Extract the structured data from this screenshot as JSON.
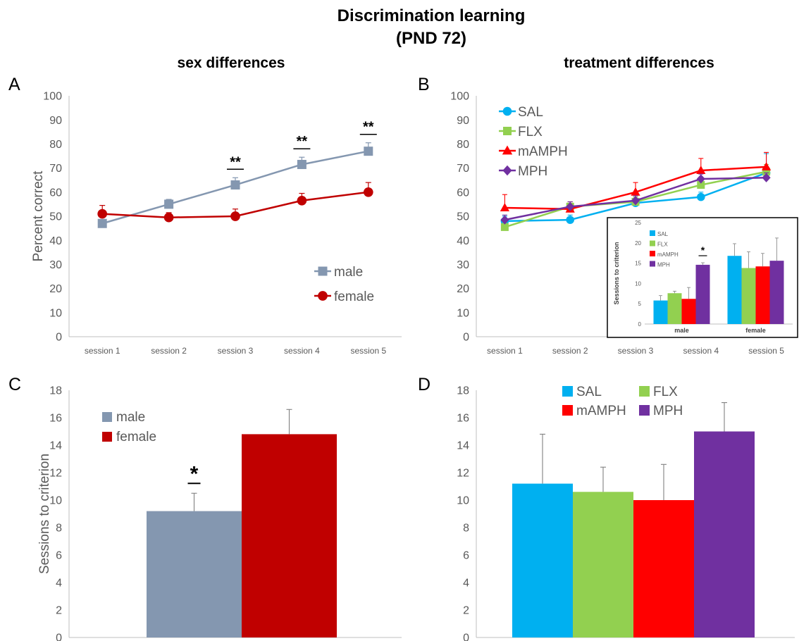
{
  "figure": {
    "title_line1": "Discrimination learning",
    "title_line2": "(PND 72)",
    "left_heading": "sex differences",
    "right_heading": "treatment differences"
  },
  "colors": {
    "male": "#8497b0",
    "female": "#c00000",
    "SAL": "#00b0f0",
    "FLX": "#92d050",
    "mAMPH": "#ff0000",
    "MPH": "#7030a0"
  },
  "chart_data": [
    {
      "panel": "A",
      "type": "line",
      "categories": [
        "session 1",
        "session 2",
        "session 3",
        "session 4",
        "session 5"
      ],
      "ylabel": "Percent correct",
      "ylim": [
        0,
        100
      ],
      "yticks": [
        0,
        10,
        20,
        30,
        40,
        50,
        60,
        70,
        80,
        90,
        100
      ],
      "legend_position": "bottom-right",
      "series": [
        {
          "name": "male",
          "marker": "square",
          "values": [
            47,
            55,
            63,
            71.5,
            77
          ],
          "errors": [
            1,
            2,
            3,
            3,
            3.5
          ]
        },
        {
          "name": "female",
          "marker": "circle",
          "values": [
            51,
            49.5,
            50,
            56.5,
            60
          ],
          "errors": [
            3.5,
            2,
            3,
            3,
            4
          ]
        }
      ],
      "annotations": [
        {
          "x": "session 3",
          "text": "**"
        },
        {
          "x": "session 4",
          "text": "**"
        },
        {
          "x": "session 5",
          "text": "**"
        }
      ]
    },
    {
      "panel": "B",
      "type": "line",
      "categories": [
        "session 1",
        "session 2",
        "session 3",
        "session 4",
        "session 5"
      ],
      "ylim": [
        0,
        100
      ],
      "yticks": [
        0,
        10,
        20,
        30,
        40,
        50,
        60,
        70,
        80,
        90,
        100
      ],
      "legend_position": "top-left",
      "series": [
        {
          "name": "SAL",
          "marker": "circle",
          "values": [
            48,
            48.5,
            55.5,
            58,
            68
          ],
          "errors": [
            2,
            2,
            2,
            2,
            8
          ]
        },
        {
          "name": "FLX",
          "marker": "square",
          "values": [
            45.5,
            54,
            56,
            63,
            68.5
          ],
          "errors": [
            2,
            2,
            2,
            2,
            3
          ]
        },
        {
          "name": "mAMPH",
          "marker": "triangle",
          "values": [
            53.5,
            53,
            60,
            69,
            70.5
          ],
          "errors": [
            5.5,
            3,
            4,
            5,
            6
          ]
        },
        {
          "name": "MPH",
          "marker": "diamond",
          "values": [
            48.5,
            54,
            56.5,
            65.5,
            66
          ],
          "errors": [
            2,
            2,
            2,
            2,
            2
          ]
        }
      ],
      "inset": {
        "type": "bar",
        "ylabel": "Sessions to criterion",
        "ylim": [
          0,
          25
        ],
        "yticks": [
          0,
          5,
          10,
          15,
          20,
          25
        ],
        "categories": [
          "male",
          "female"
        ],
        "series": [
          {
            "name": "SAL",
            "values": [
              5.8,
              16.8
            ],
            "errors": [
              1.2,
              3
            ]
          },
          {
            "name": "FLX",
            "values": [
              7.6,
              13.8
            ],
            "errors": [
              0.5,
              4
            ]
          },
          {
            "name": "mAMPH",
            "values": [
              6.2,
              14.2
            ],
            "errors": [
              2.8,
              3.2
            ]
          },
          {
            "name": "MPH",
            "values": [
              14.6,
              15.6
            ],
            "errors": [
              0.5,
              5.6
            ]
          }
        ],
        "annotations": [
          {
            "x": "male",
            "series": "MPH",
            "text": "*"
          }
        ]
      }
    },
    {
      "panel": "C",
      "type": "bar",
      "categories": [
        "male",
        "female"
      ],
      "values": [
        9.2,
        14.8
      ],
      "errors": [
        1.3,
        1.8
      ],
      "ylabel": "Sessions to criterion",
      "ylim": [
        0,
        18
      ],
      "yticks": [
        0,
        2,
        4,
        6,
        8,
        10,
        12,
        14,
        16,
        18
      ],
      "legend_position": "top-left",
      "annotations": [
        {
          "x": "male",
          "text": "*"
        }
      ]
    },
    {
      "panel": "D",
      "type": "bar",
      "categories": [
        "SAL",
        "FLX",
        "mAMPH",
        "MPH"
      ],
      "values": [
        11.2,
        10.6,
        10.0,
        15.0
      ],
      "errors": [
        3.6,
        1.8,
        2.6,
        2.1
      ],
      "ylim": [
        0,
        18
      ],
      "yticks": [
        0,
        2,
        4,
        6,
        8,
        10,
        12,
        14,
        16,
        18
      ],
      "legend_position": "top"
    }
  ]
}
